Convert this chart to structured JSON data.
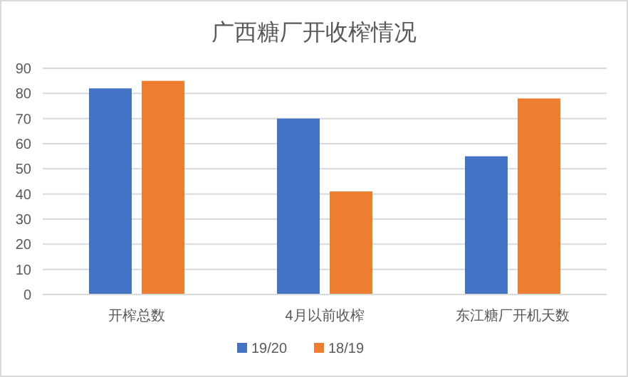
{
  "chart_data": {
    "type": "bar",
    "title": "广西糖厂开收榨情况",
    "categories": [
      "开榨总数",
      "4月以前收榨",
      "东江糖厂开机天数"
    ],
    "series": [
      {
        "name": "19/20",
        "color": "#4472c4",
        "values": [
          82,
          70,
          55
        ]
      },
      {
        "name": "18/19",
        "color": "#ed7d31",
        "values": [
          85,
          41,
          78
        ]
      }
    ],
    "ylim": [
      0,
      90
    ],
    "yticks": [
      0,
      10,
      20,
      30,
      40,
      50,
      60,
      70,
      80,
      90
    ],
    "grid": "y",
    "legend": "bottom"
  }
}
